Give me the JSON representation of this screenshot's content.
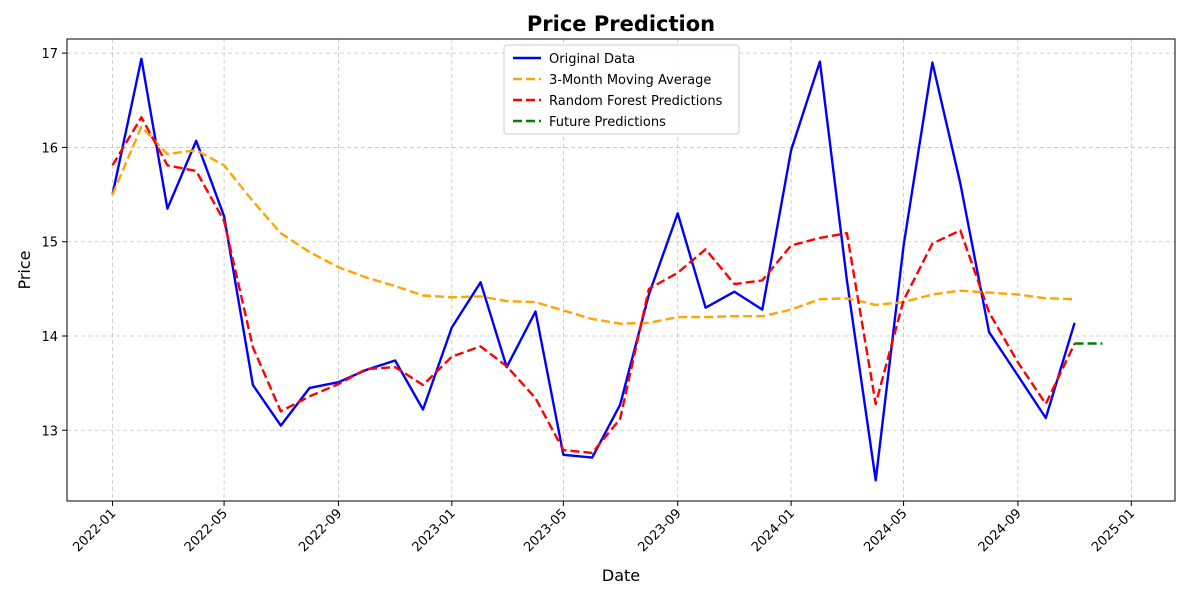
{
  "chart_data": {
    "type": "line",
    "title": "Price Prediction",
    "xlabel": "Date",
    "ylabel": "Price",
    "x_ticks": [
      "2022-01",
      "2022-05",
      "2022-09",
      "2023-01",
      "2023-05",
      "2023-09",
      "2024-01",
      "2024-05",
      "2024-09",
      "2025-01"
    ],
    "y_ticks": [
      13,
      14,
      15,
      16,
      17
    ],
    "xlim": [
      "2021-11-13",
      "2025-02-17"
    ],
    "ylim": [
      12.25,
      17.15
    ],
    "grid": true,
    "legend_position": "top-center",
    "series": [
      {
        "name": "Original Data",
        "color": "#0000ff",
        "dash": "solid",
        "x": [
          "2022-01-01",
          "2022-02-01",
          "2022-03-01",
          "2022-04-01",
          "2022-05-01",
          "2022-06-01",
          "2022-07-01",
          "2022-08-01",
          "2022-09-01",
          "2022-10-01",
          "2022-11-01",
          "2022-12-01",
          "2023-01-01",
          "2023-02-01",
          "2023-03-01",
          "2023-04-01",
          "2023-05-01",
          "2023-06-01",
          "2023-07-01",
          "2023-08-01",
          "2023-09-01",
          "2023-10-01",
          "2023-11-01",
          "2023-12-01",
          "2024-01-01",
          "2024-02-01",
          "2024-03-01",
          "2024-04-01",
          "2024-05-01",
          "2024-06-01",
          "2024-07-01",
          "2024-08-01",
          "2024-09-01",
          "2024-10-01",
          "2024-11-01"
        ],
        "y": [
          15.5,
          16.94,
          15.35,
          16.07,
          15.27,
          13.48,
          13.05,
          13.45,
          13.51,
          13.64,
          13.74,
          13.22,
          14.09,
          14.57,
          13.67,
          14.26,
          12.74,
          12.71,
          13.27,
          14.44,
          15.3,
          14.3,
          14.47,
          14.28,
          15.97,
          16.91,
          14.59,
          12.47,
          14.96,
          16.9,
          15.62,
          14.04,
          13.58,
          13.13,
          14.14
        ]
      },
      {
        "name": "3-Month Moving Average",
        "color": "#ffa500",
        "dash": "dashed",
        "x": [
          "2022-01-01",
          "2022-02-01",
          "2022-03-01",
          "2022-04-01",
          "2022-05-01",
          "2022-06-01",
          "2022-07-01",
          "2022-08-01",
          "2022-09-01",
          "2022-10-01",
          "2022-11-01",
          "2022-12-01",
          "2023-01-01",
          "2023-02-01",
          "2023-03-01",
          "2023-04-01",
          "2023-05-01",
          "2023-06-01",
          "2023-07-01",
          "2023-08-01",
          "2023-09-01",
          "2023-10-01",
          "2023-11-01",
          "2023-12-01",
          "2024-01-01",
          "2024-02-01",
          "2024-03-01",
          "2024-04-01",
          "2024-05-01",
          "2024-06-01",
          "2024-07-01",
          "2024-08-01",
          "2024-09-01",
          "2024-10-01",
          "2024-11-01"
        ],
        "y": [
          15.5,
          16.22,
          15.93,
          15.97,
          15.81,
          15.43,
          15.09,
          14.89,
          14.73,
          14.62,
          14.53,
          14.43,
          14.41,
          14.42,
          14.37,
          14.36,
          14.27,
          14.18,
          14.13,
          14.14,
          14.2,
          14.2,
          14.21,
          14.21,
          14.28,
          14.39,
          14.4,
          14.33,
          14.36,
          14.44,
          14.48,
          14.46,
          14.44,
          14.4,
          14.39
        ]
      },
      {
        "name": "Random Forest Predictions",
        "color": "#ff0000",
        "dash": "dashed",
        "x": [
          "2022-01-01",
          "2022-02-01",
          "2022-03-01",
          "2022-04-01",
          "2022-05-01",
          "2022-06-01",
          "2022-07-01",
          "2022-08-01",
          "2022-09-01",
          "2022-10-01",
          "2022-11-01",
          "2022-12-01",
          "2023-01-01",
          "2023-02-01",
          "2023-03-01",
          "2023-04-01",
          "2023-05-01",
          "2023-06-01",
          "2023-07-01",
          "2023-08-01",
          "2023-09-01",
          "2023-10-01",
          "2023-11-01",
          "2023-12-01",
          "2024-01-01",
          "2024-02-01",
          "2024-03-01",
          "2024-04-01",
          "2024-05-01",
          "2024-06-01",
          "2024-07-01",
          "2024-08-01",
          "2024-09-01",
          "2024-10-01",
          "2024-11-01"
        ],
        "y": [
          15.81,
          16.32,
          15.81,
          15.75,
          15.22,
          13.88,
          13.2,
          13.36,
          13.49,
          13.65,
          13.67,
          13.48,
          13.78,
          13.89,
          13.68,
          13.34,
          12.79,
          12.76,
          13.12,
          14.5,
          14.67,
          14.92,
          14.55,
          14.59,
          14.96,
          15.04,
          15.09,
          13.28,
          14.38,
          14.98,
          15.12,
          14.25,
          13.72,
          13.28,
          13.92
        ]
      },
      {
        "name": "Future Predictions",
        "color": "#008000",
        "dash": "dashed",
        "x": [
          "2024-11-01",
          "2024-12-01"
        ],
        "y": [
          13.92,
          13.92
        ]
      }
    ]
  }
}
